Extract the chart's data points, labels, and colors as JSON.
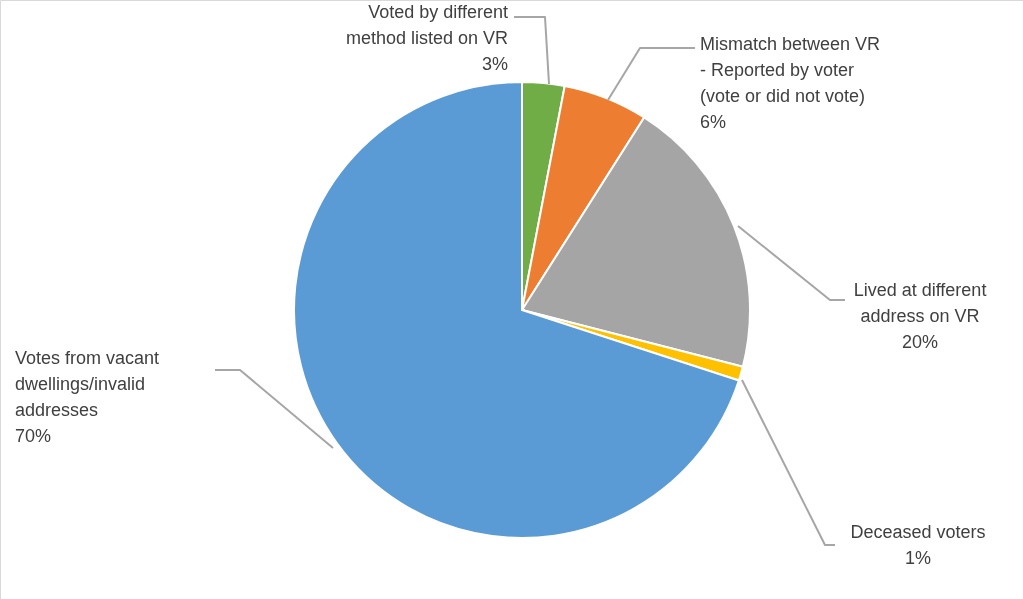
{
  "chart_data": {
    "type": "pie",
    "categories": [
      "Voted by different\nmethod listed on VR",
      "Mismatch between VR\n- Reported by voter\n(vote or did not vote)",
      "Lived at different\naddress on VR",
      "Deceased voters",
      "Votes from vacant\ndwellings/invalid\naddresses"
    ],
    "values": [
      3,
      6,
      20,
      1,
      70
    ],
    "colors": [
      "#70ad47",
      "#ed7d31",
      "#a5a5a5",
      "#ffc000",
      "#5b9bd5"
    ],
    "value_labels": [
      "3%",
      "6%",
      "20%",
      "1%",
      "70%"
    ]
  }
}
